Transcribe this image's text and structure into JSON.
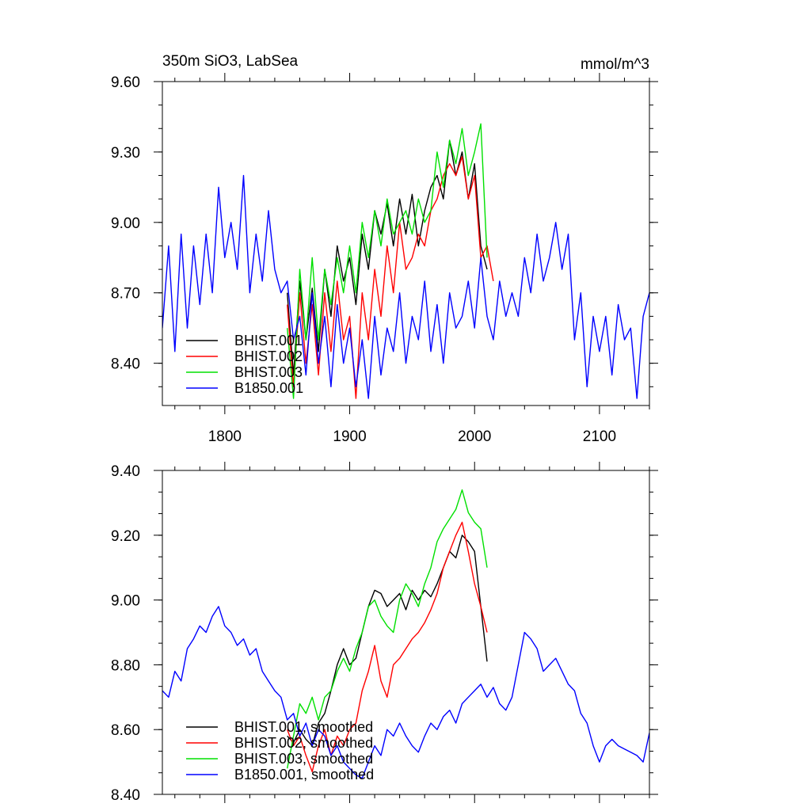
{
  "chart_data": [
    {
      "type": "line",
      "title": "350m SiO3, LabSea",
      "units": "mmol/m^3",
      "xlim": [
        1750,
        2140
      ],
      "ylim": [
        8.22,
        9.6
      ],
      "xticks": [
        1800,
        1900,
        2000,
        2100
      ],
      "xtick_labels": [
        "1800",
        "1900",
        "2000",
        "2100"
      ],
      "yticks": [
        8.4,
        8.7,
        9.0,
        9.3,
        9.6
      ],
      "ytick_labels": [
        "8.40",
        "8.70",
        "9.00",
        "9.30",
        "9.60"
      ],
      "legend_position": "bottom-left",
      "series": [
        {
          "name": "BHIST.001",
          "color": "#000000",
          "x": [
            1850,
            1855,
            1860,
            1865,
            1870,
            1875,
            1880,
            1885,
            1890,
            1895,
            1900,
            1905,
            1910,
            1915,
            1920,
            1925,
            1930,
            1935,
            1940,
            1945,
            1950,
            1955,
            1960,
            1965,
            1970,
            1975,
            1980,
            1985,
            1990,
            1995,
            2000,
            2005,
            2010
          ],
          "y": [
            8.7,
            8.35,
            8.75,
            8.5,
            8.72,
            8.45,
            8.8,
            8.6,
            8.9,
            8.75,
            8.85,
            8.65,
            8.95,
            8.8,
            9.05,
            8.95,
            9.08,
            8.9,
            9.1,
            8.95,
            9.12,
            8.9,
            9.05,
            9.15,
            9.2,
            9.1,
            9.35,
            9.2,
            9.3,
            9.1,
            9.25,
            8.9,
            8.8
          ]
        },
        {
          "name": "BHIST.002",
          "color": "#ff0000",
          "x": [
            1850,
            1855,
            1860,
            1865,
            1870,
            1875,
            1880,
            1885,
            1890,
            1895,
            1900,
            1905,
            1910,
            1915,
            1920,
            1925,
            1930,
            1935,
            1940,
            1945,
            1950,
            1955,
            1960,
            1965,
            1970,
            1975,
            1980,
            1985,
            1990,
            1995,
            2000,
            2005,
            2010,
            2015
          ],
          "y": [
            8.65,
            8.3,
            8.7,
            8.4,
            8.65,
            8.35,
            8.7,
            8.45,
            8.75,
            8.5,
            8.6,
            8.25,
            8.7,
            8.5,
            8.8,
            8.6,
            8.9,
            8.7,
            9.0,
            8.8,
            8.85,
            8.95,
            8.9,
            9.05,
            9.1,
            9.2,
            9.25,
            9.2,
            9.28,
            9.1,
            9.2,
            8.85,
            8.9,
            8.75
          ]
        },
        {
          "name": "BHIST.003",
          "color": "#00e000",
          "x": [
            1850,
            1855,
            1860,
            1865,
            1870,
            1875,
            1880,
            1885,
            1890,
            1895,
            1900,
            1905,
            1910,
            1915,
            1920,
            1925,
            1930,
            1935,
            1940,
            1945,
            1950,
            1955,
            1960,
            1965,
            1970,
            1975,
            1980,
            1985,
            1990,
            1995,
            2000,
            2005,
            2010
          ],
          "y": [
            8.55,
            8.25,
            8.8,
            8.5,
            8.85,
            8.5,
            8.8,
            8.65,
            8.85,
            8.7,
            8.9,
            8.7,
            9.0,
            8.85,
            9.05,
            8.9,
            9.1,
            8.95,
            9.0,
            9.05,
            8.95,
            9.1,
            9.0,
            9.05,
            9.3,
            9.15,
            9.35,
            9.25,
            9.4,
            9.2,
            9.3,
            9.42,
            8.85
          ]
        },
        {
          "name": "B1850.001",
          "color": "#0000ff",
          "x": [
            1750,
            1755,
            1760,
            1765,
            1770,
            1775,
            1780,
            1785,
            1790,
            1795,
            1800,
            1805,
            1810,
            1815,
            1820,
            1825,
            1830,
            1835,
            1840,
            1845,
            1850,
            1855,
            1860,
            1865,
            1870,
            1875,
            1880,
            1885,
            1890,
            1895,
            1900,
            1905,
            1910,
            1915,
            1920,
            1925,
            1930,
            1935,
            1940,
            1945,
            1950,
            1955,
            1960,
            1965,
            1970,
            1975,
            1980,
            1985,
            1990,
            1995,
            2000,
            2005,
            2010,
            2015,
            2020,
            2025,
            2030,
            2035,
            2040,
            2045,
            2050,
            2055,
            2060,
            2065,
            2070,
            2075,
            2080,
            2085,
            2090,
            2095,
            2100,
            2105,
            2110,
            2115,
            2120,
            2125,
            2130,
            2135,
            2140
          ],
          "y": [
            8.55,
            8.9,
            8.45,
            8.95,
            8.55,
            8.9,
            8.65,
            8.95,
            8.7,
            9.15,
            8.85,
            9.0,
            8.8,
            9.2,
            8.7,
            8.95,
            8.75,
            9.05,
            8.8,
            8.7,
            8.75,
            8.5,
            8.6,
            8.35,
            8.7,
            8.4,
            8.6,
            8.3,
            8.65,
            8.4,
            8.55,
            8.3,
            8.5,
            8.25,
            8.6,
            8.35,
            8.55,
            8.45,
            8.7,
            8.4,
            8.6,
            8.5,
            8.75,
            8.45,
            8.65,
            8.4,
            8.7,
            8.55,
            8.6,
            8.75,
            8.55,
            8.85,
            8.6,
            8.5,
            8.75,
            8.6,
            8.7,
            8.6,
            8.85,
            8.7,
            8.95,
            8.75,
            8.85,
            9.0,
            8.8,
            8.95,
            8.5,
            8.7,
            8.3,
            8.6,
            8.45,
            8.6,
            8.35,
            8.65,
            8.5,
            8.55,
            8.25,
            8.6,
            8.7
          ]
        }
      ]
    },
    {
      "type": "line",
      "title": "",
      "xlim": [
        1750,
        2140
      ],
      "ylim": [
        8.4,
        9.4
      ],
      "xticks": [
        1800,
        1900,
        2000,
        2100
      ],
      "xtick_labels": [],
      "yticks": [
        8.4,
        8.6,
        8.8,
        9.0,
        9.2,
        9.4
      ],
      "ytick_labels": [
        "8.40",
        "8.60",
        "8.80",
        "9.00",
        "9.20",
        "9.40"
      ],
      "legend_position": "bottom-left",
      "series": [
        {
          "name": "BHIST.001, smoothed",
          "color": "#000000",
          "x": [
            1850,
            1855,
            1860,
            1865,
            1870,
            1875,
            1880,
            1885,
            1890,
            1895,
            1900,
            1905,
            1910,
            1915,
            1920,
            1925,
            1930,
            1935,
            1940,
            1945,
            1950,
            1955,
            1960,
            1965,
            1970,
            1975,
            1980,
            1985,
            1990,
            1995,
            2000,
            2005,
            2010
          ],
          "y": [
            8.58,
            8.56,
            8.6,
            8.57,
            8.55,
            8.62,
            8.65,
            8.72,
            8.8,
            8.85,
            8.8,
            8.82,
            8.9,
            8.98,
            9.03,
            9.02,
            8.98,
            9.0,
            9.02,
            8.97,
            9.03,
            9.0,
            9.03,
            9.01,
            9.05,
            9.1,
            9.15,
            9.13,
            9.2,
            9.18,
            9.15,
            8.98,
            8.81
          ]
        },
        {
          "name": "BHIST.002, smoothed",
          "color": "#ff0000",
          "x": [
            1850,
            1855,
            1860,
            1865,
            1870,
            1875,
            1880,
            1885,
            1890,
            1895,
            1900,
            1905,
            1910,
            1915,
            1920,
            1925,
            1930,
            1935,
            1940,
            1945,
            1950,
            1955,
            1960,
            1965,
            1970,
            1975,
            1980,
            1985,
            1990,
            1995,
            2000,
            2005,
            2010
          ],
          "y": [
            8.6,
            8.55,
            8.58,
            8.52,
            8.47,
            8.55,
            8.6,
            8.52,
            8.58,
            8.55,
            8.6,
            8.62,
            8.72,
            8.78,
            8.86,
            8.75,
            8.7,
            8.8,
            8.82,
            8.85,
            8.88,
            8.9,
            8.93,
            8.97,
            9.02,
            9.1,
            9.15,
            9.2,
            9.24,
            9.15,
            9.05,
            8.98,
            8.9
          ]
        },
        {
          "name": "BHIST.003, smoothed",
          "color": "#00e000",
          "x": [
            1850,
            1855,
            1860,
            1865,
            1870,
            1875,
            1880,
            1885,
            1890,
            1895,
            1900,
            1905,
            1910,
            1915,
            1920,
            1925,
            1930,
            1935,
            1940,
            1945,
            1950,
            1955,
            1960,
            1965,
            1970,
            1975,
            1980,
            1985,
            1990,
            1995,
            2000,
            2005,
            2010
          ],
          "y": [
            8.48,
            8.58,
            8.68,
            8.65,
            8.7,
            8.63,
            8.7,
            8.72,
            8.78,
            8.82,
            8.78,
            8.85,
            8.9,
            8.98,
            9.0,
            8.95,
            8.92,
            8.9,
            9.0,
            9.05,
            9.02,
            8.98,
            9.05,
            9.1,
            9.18,
            9.22,
            9.25,
            9.28,
            9.34,
            9.27,
            9.24,
            9.22,
            9.1
          ]
        },
        {
          "name": "B1850.001, smoothed",
          "color": "#0000ff",
          "x": [
            1750,
            1755,
            1760,
            1765,
            1770,
            1775,
            1780,
            1785,
            1790,
            1795,
            1800,
            1805,
            1810,
            1815,
            1820,
            1825,
            1830,
            1835,
            1840,
            1845,
            1850,
            1855,
            1860,
            1865,
            1870,
            1875,
            1880,
            1885,
            1890,
            1895,
            1900,
            1905,
            1910,
            1915,
            1920,
            1925,
            1930,
            1935,
            1940,
            1945,
            1950,
            1955,
            1960,
            1965,
            1970,
            1975,
            1980,
            1985,
            1990,
            1995,
            2000,
            2005,
            2010,
            2015,
            2020,
            2025,
            2030,
            2035,
            2040,
            2045,
            2050,
            2055,
            2060,
            2065,
            2070,
            2075,
            2080,
            2085,
            2090,
            2095,
            2100,
            2105,
            2110,
            2115,
            2120,
            2125,
            2130,
            2135,
            2140
          ],
          "y": [
            8.72,
            8.7,
            8.78,
            8.75,
            8.85,
            8.88,
            8.92,
            8.9,
            8.95,
            8.98,
            8.92,
            8.9,
            8.86,
            8.88,
            8.83,
            8.85,
            8.78,
            8.75,
            8.72,
            8.7,
            8.63,
            8.65,
            8.58,
            8.62,
            8.55,
            8.6,
            8.58,
            8.52,
            8.55,
            8.5,
            8.48,
            8.46,
            8.45,
            8.5,
            8.55,
            8.52,
            8.6,
            8.58,
            8.62,
            8.58,
            8.55,
            8.53,
            8.58,
            8.62,
            8.6,
            8.64,
            8.66,
            8.62,
            8.68,
            8.7,
            8.72,
            8.74,
            8.7,
            8.73,
            8.68,
            8.66,
            8.7,
            8.8,
            8.9,
            8.88,
            8.85,
            8.78,
            8.8,
            8.82,
            8.78,
            8.74,
            8.72,
            8.65,
            8.62,
            8.55,
            8.5,
            8.55,
            8.57,
            8.55,
            8.54,
            8.53,
            8.52,
            8.5,
            8.59
          ]
        }
      ]
    }
  ]
}
